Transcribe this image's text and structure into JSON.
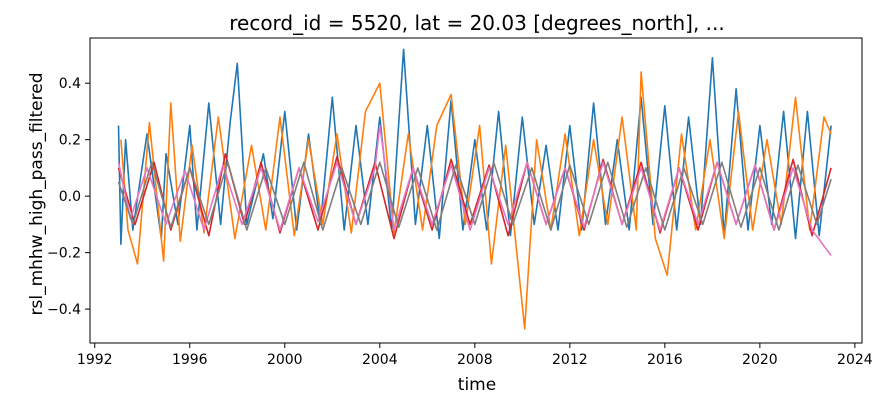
{
  "chart_data": {
    "type": "line",
    "title": "record_id = 5520, lat = 20.03 [degrees_north], ...",
    "xlabel": "time",
    "ylabel": "rsl_mhhw_high_pass_filtered",
    "xlim": [
      1991.8,
      2024.3
    ],
    "ylim": [
      -0.52,
      0.56
    ],
    "xticks": [
      1992,
      1996,
      2000,
      2004,
      2008,
      2012,
      2016,
      2020,
      2024
    ],
    "xtick_labels": [
      "1992",
      "1996",
      "2000",
      "2004",
      "2008",
      "2012",
      "2016",
      "2020",
      "2024"
    ],
    "yticks": [
      -0.4,
      -0.2,
      0.0,
      0.2,
      0.4
    ],
    "ytick_labels": [
      "−0.4",
      "−0.2",
      "0.0",
      "0.2",
      "0.4"
    ],
    "grid": false,
    "legend": "none",
    "series": [
      {
        "color": "#1f77b4",
        "x": [
          1993.0,
          1993.1,
          1993.3,
          1993.6,
          1994.2,
          1994.8,
          1995.0,
          1995.5,
          1996.0,
          1996.3,
          1996.8,
          1997.3,
          1997.7,
          1998.0,
          1998.4,
          1999.1,
          1999.5,
          2000.0,
          2000.5,
          2001.0,
          2001.5,
          2002.0,
          2002.5,
          2003.0,
          2003.5,
          2004.0,
          2004.5,
          2005.0,
          2005.5,
          2006.0,
          2006.5,
          2007.0,
          2007.5,
          2008.0,
          2008.5,
          2009.0,
          2009.5,
          2010.0,
          2010.5,
          2011.0,
          2011.5,
          2012.0,
          2012.5,
          2013.0,
          2013.5,
          2014.0,
          2014.5,
          2015.0,
          2015.5,
          2016.0,
          2016.5,
          2017.0,
          2017.5,
          2018.0,
          2018.5,
          2019.0,
          2019.5,
          2020.0,
          2020.5,
          2021.0,
          2021.5,
          2022.0,
          2022.5,
          2023.0
        ],
        "y": [
          0.25,
          -0.17,
          0.2,
          -0.12,
          0.22,
          -0.15,
          0.15,
          -0.1,
          0.25,
          -0.12,
          0.33,
          -0.1,
          0.26,
          0.47,
          -0.1,
          0.15,
          -0.08,
          0.3,
          -0.12,
          0.22,
          -0.1,
          0.35,
          -0.12,
          0.25,
          -0.1,
          0.28,
          -0.12,
          0.52,
          -0.1,
          0.25,
          -0.15,
          0.34,
          -0.12,
          0.2,
          -0.12,
          0.3,
          -0.14,
          0.28,
          -0.1,
          0.18,
          -0.12,
          0.25,
          -0.12,
          0.33,
          -0.1,
          0.2,
          -0.12,
          0.35,
          -0.1,
          0.32,
          -0.12,
          0.28,
          -0.1,
          0.49,
          -0.14,
          0.38,
          -0.12,
          0.25,
          -0.1,
          0.3,
          -0.15,
          0.3,
          -0.14,
          0.25
        ]
      },
      {
        "color": "#ff7f0e",
        "x": [
          1993.1,
          1993.4,
          1993.8,
          1994.3,
          1994.9,
          1995.2,
          1995.6,
          1996.1,
          1996.6,
          1997.2,
          1997.9,
          1998.6,
          1999.2,
          1999.8,
          2000.4,
          2001.0,
          2001.6,
          2002.2,
          2002.8,
          2003.4,
          2004.0,
          2004.6,
          2005.2,
          2005.8,
          2006.4,
          2007.0,
          2007.6,
          2008.2,
          2008.7,
          2009.3,
          2010.1,
          2010.6,
          2011.2,
          2011.8,
          2012.4,
          2013.0,
          2013.6,
          2014.2,
          2014.8,
          2015.0,
          2015.6,
          2016.1,
          2016.7,
          2017.3,
          2017.9,
          2018.5,
          2019.1,
          2019.7,
          2020.3,
          2020.9,
          2021.5,
          2022.1,
          2022.7,
          2023.0
        ],
        "y": [
          0.2,
          -0.12,
          -0.24,
          0.26,
          -0.23,
          0.33,
          -0.16,
          0.18,
          -0.13,
          0.28,
          -0.15,
          0.18,
          -0.12,
          0.28,
          -0.14,
          0.2,
          -0.1,
          0.22,
          -0.13,
          0.3,
          0.4,
          -0.13,
          0.22,
          -0.12,
          0.25,
          0.36,
          -0.1,
          0.25,
          -0.24,
          0.18,
          -0.47,
          0.2,
          -0.12,
          0.22,
          -0.14,
          0.2,
          -0.1,
          0.28,
          -0.12,
          0.44,
          -0.15,
          -0.28,
          0.22,
          -0.12,
          0.2,
          -0.15,
          0.3,
          -0.12,
          0.2,
          -0.1,
          0.35,
          -0.12,
          0.28,
          0.22
        ]
      },
      {
        "color": "#d62728",
        "x": [
          1993.0,
          1993.7,
          1994.5,
          1995.2,
          1996.0,
          1996.8,
          1997.5,
          1998.3,
          1999.0,
          1999.8,
          2000.6,
          2001.4,
          2002.2,
          2003.0,
          2003.8,
          2004.6,
          2005.4,
          2006.2,
          2007.0,
          2007.8,
          2008.6,
          2009.4,
          2010.2,
          2011.0,
          2011.8,
          2012.6,
          2013.4,
          2014.2,
          2015.0,
          2015.8,
          2016.6,
          2017.4,
          2018.2,
          2019.0,
          2019.8,
          2020.6,
          2021.4,
          2022.2,
          2023.0
        ],
        "y": [
          0.1,
          -0.1,
          0.12,
          -0.12,
          0.1,
          -0.14,
          0.15,
          -0.1,
          0.12,
          -0.13,
          0.1,
          -0.12,
          0.14,
          -0.1,
          0.12,
          -0.15,
          0.1,
          -0.12,
          0.13,
          -0.1,
          0.11,
          -0.14,
          0.12,
          -0.1,
          0.1,
          -0.12,
          0.13,
          -0.1,
          0.12,
          -0.13,
          0.1,
          -0.12,
          0.12,
          -0.1,
          0.11,
          -0.12,
          0.13,
          -0.14,
          0.1
        ]
      },
      {
        "color": "#e377c2",
        "x": [
          1993.0,
          1993.5,
          1994.2,
          1995.0,
          1995.8,
          1996.6,
          1997.4,
          1998.2,
          1999.0,
          1999.8,
          2000.6,
          2001.4,
          2002.2,
          2003.0,
          2003.8,
          2004.0,
          2004.6,
          2005.4,
          2006.2,
          2007.0,
          2007.8,
          2008.6,
          2009.4,
          2010.2,
          2011.0,
          2011.8,
          2012.6,
          2013.4,
          2014.2,
          2015.0,
          2015.8,
          2016.6,
          2017.4,
          2018.2,
          2019.0,
          2019.8,
          2020.6,
          2021.4,
          2022.2,
          2023.0
        ],
        "y": [
          0.12,
          -0.08,
          0.1,
          -0.1,
          0.09,
          -0.12,
          0.11,
          -0.1,
          0.1,
          -0.12,
          0.1,
          -0.09,
          0.12,
          -0.1,
          0.1,
          0.25,
          -0.12,
          0.1,
          -0.1,
          0.11,
          -0.12,
          0.1,
          -0.1,
          0.12,
          -0.1,
          0.1,
          -0.11,
          0.12,
          -0.1,
          0.1,
          -0.12,
          0.1,
          -0.1,
          0.12,
          -0.1,
          0.11,
          -0.12,
          0.1,
          -0.12,
          -0.21
        ]
      },
      {
        "color": "#7f7f7f",
        "x": [
          1993.0,
          1993.6,
          1994.4,
          1995.2,
          1996.0,
          1996.8,
          1997.6,
          1998.4,
          1999.2,
          2000.0,
          2000.8,
          2001.6,
          2002.4,
          2003.2,
          2004.0,
          2004.8,
          2005.6,
          2006.4,
          2007.2,
          2008.0,
          2008.8,
          2009.6,
          2010.4,
          2011.2,
          2012.0,
          2012.8,
          2013.6,
          2014.4,
          2015.2,
          2016.0,
          2016.8,
          2017.6,
          2018.4,
          2019.2,
          2020.0,
          2020.8,
          2021.6,
          2022.4,
          2023.0
        ],
        "y": [
          0.05,
          -0.1,
          0.12,
          -0.11,
          0.1,
          -0.1,
          0.12,
          -0.12,
          0.1,
          -0.1,
          0.12,
          -0.12,
          0.1,
          -0.1,
          0.12,
          -0.11,
          0.1,
          -0.12,
          0.11,
          -0.1,
          0.12,
          -0.1,
          0.1,
          -0.12,
          0.11,
          -0.1,
          0.12,
          -0.11,
          0.1,
          -0.12,
          0.1,
          -0.1,
          0.12,
          -0.11,
          0.1,
          -0.12,
          0.11,
          -0.1,
          0.06
        ]
      }
    ]
  }
}
